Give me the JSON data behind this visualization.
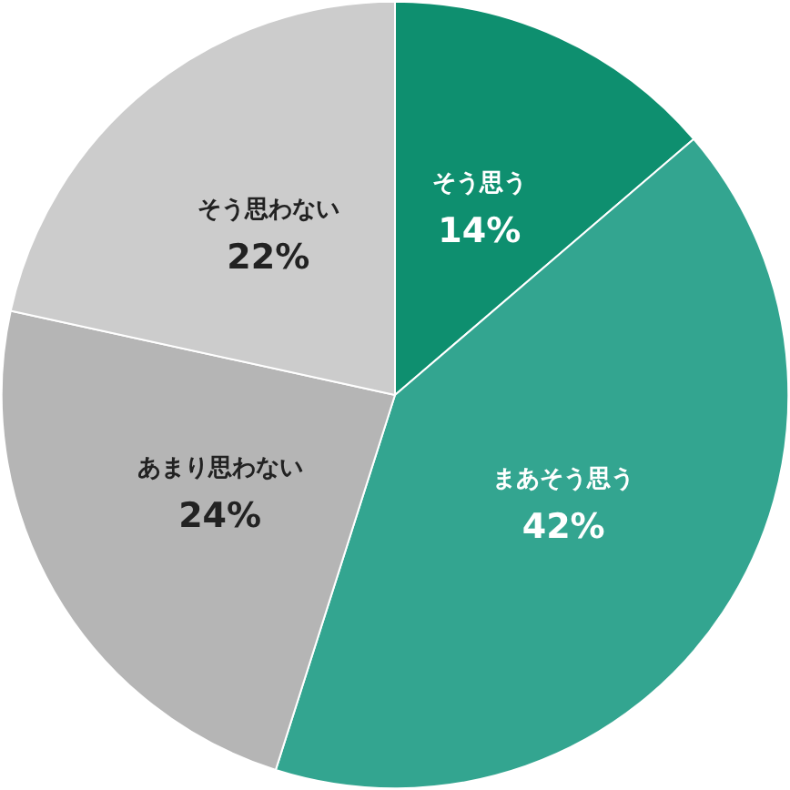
{
  "chart_data": {
    "type": "pie",
    "categories": [
      "そう思う",
      "まあそう思う",
      "あまり思わない",
      "そう思わない"
    ],
    "values": [
      14,
      42,
      24,
      22
    ],
    "colors": [
      "#0e8f6f",
      "#33a590",
      "#b5b5b5",
      "#cccccc"
    ],
    "value_labels": [
      "14%",
      "42%",
      "24%",
      "22%"
    ],
    "legend": false
  }
}
